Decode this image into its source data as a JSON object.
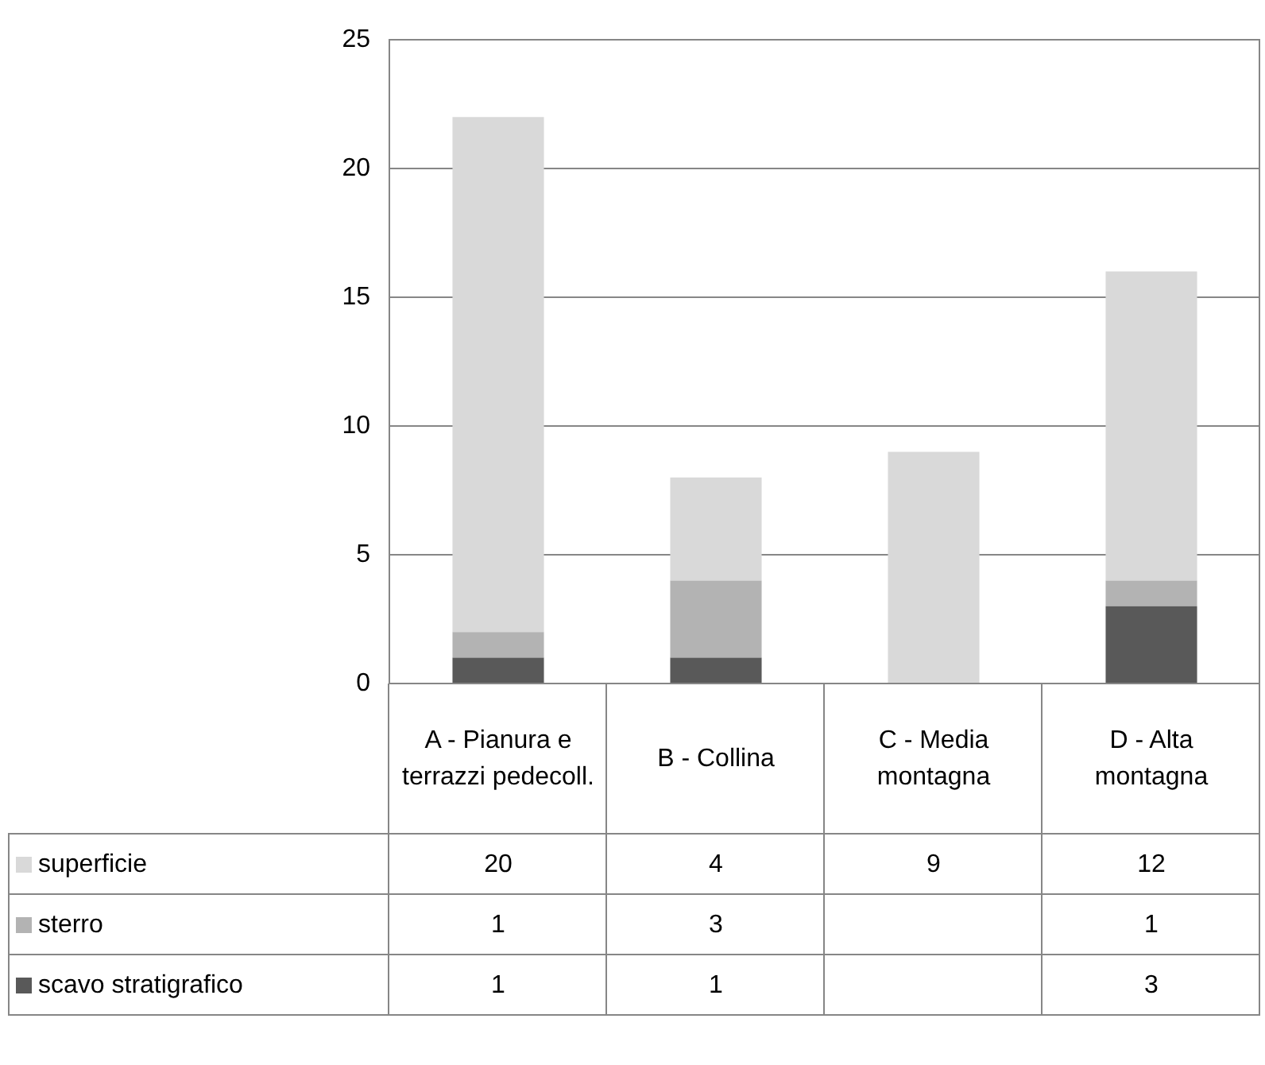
{
  "chart_data": {
    "type": "bar",
    "stacked": true,
    "categories": [
      "A - Pianura e terrazzi pedecoll.",
      "B - Collina",
      "C - Media montagna",
      "D - Alta montagna"
    ],
    "series": [
      {
        "name": "scavo stratigrafico",
        "color": "#595959",
        "values": [
          1,
          1,
          null,
          3
        ]
      },
      {
        "name": "sterro",
        "color": "#b3b3b3",
        "values": [
          1,
          3,
          null,
          1
        ]
      },
      {
        "name": "superficie",
        "color": "#d9d9d9",
        "values": [
          20,
          4,
          9,
          12
        ]
      }
    ],
    "ylim": [
      0,
      25
    ],
    "yticks": [
      0,
      5,
      10,
      15,
      20,
      25
    ],
    "grid": "y",
    "legend": "bottom",
    "data_labels": true
  }
}
